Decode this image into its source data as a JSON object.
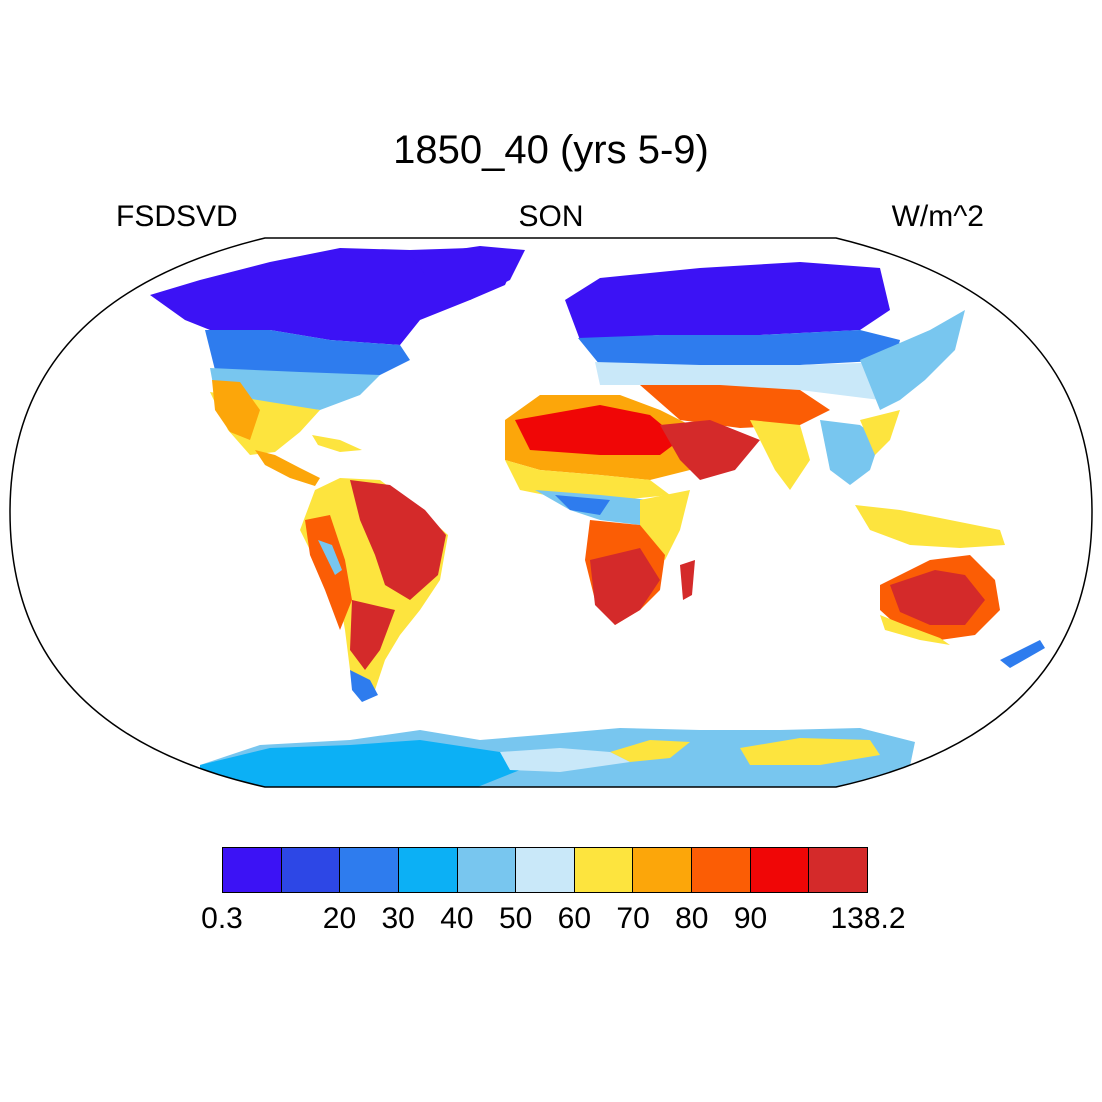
{
  "title": "1850_40 (yrs 5-9)",
  "left_label": "FSDSVD",
  "center_label": "SON",
  "right_label": "W/m^2",
  "colorbar": {
    "colors": [
      "#3c12f5",
      "#2d47e6",
      "#2e7cee",
      "#0cb0f5",
      "#78c6ef",
      "#c9e8f9",
      "#fde43e",
      "#fca60a",
      "#fb5d05",
      "#f00606",
      "#d42a2a"
    ],
    "labels": [
      {
        "text": "0.3",
        "boundary": 0
      },
      {
        "text": "20",
        "boundary": 2
      },
      {
        "text": "30",
        "boundary": 3
      },
      {
        "text": "40",
        "boundary": 4
      },
      {
        "text": "50",
        "boundary": 5
      },
      {
        "text": "60",
        "boundary": 6
      },
      {
        "text": "70",
        "boundary": 7
      },
      {
        "text": "80",
        "boundary": 8
      },
      {
        "text": "90",
        "boundary": 9
      },
      {
        "text": "138.2",
        "boundary": 11
      }
    ]
  }
}
